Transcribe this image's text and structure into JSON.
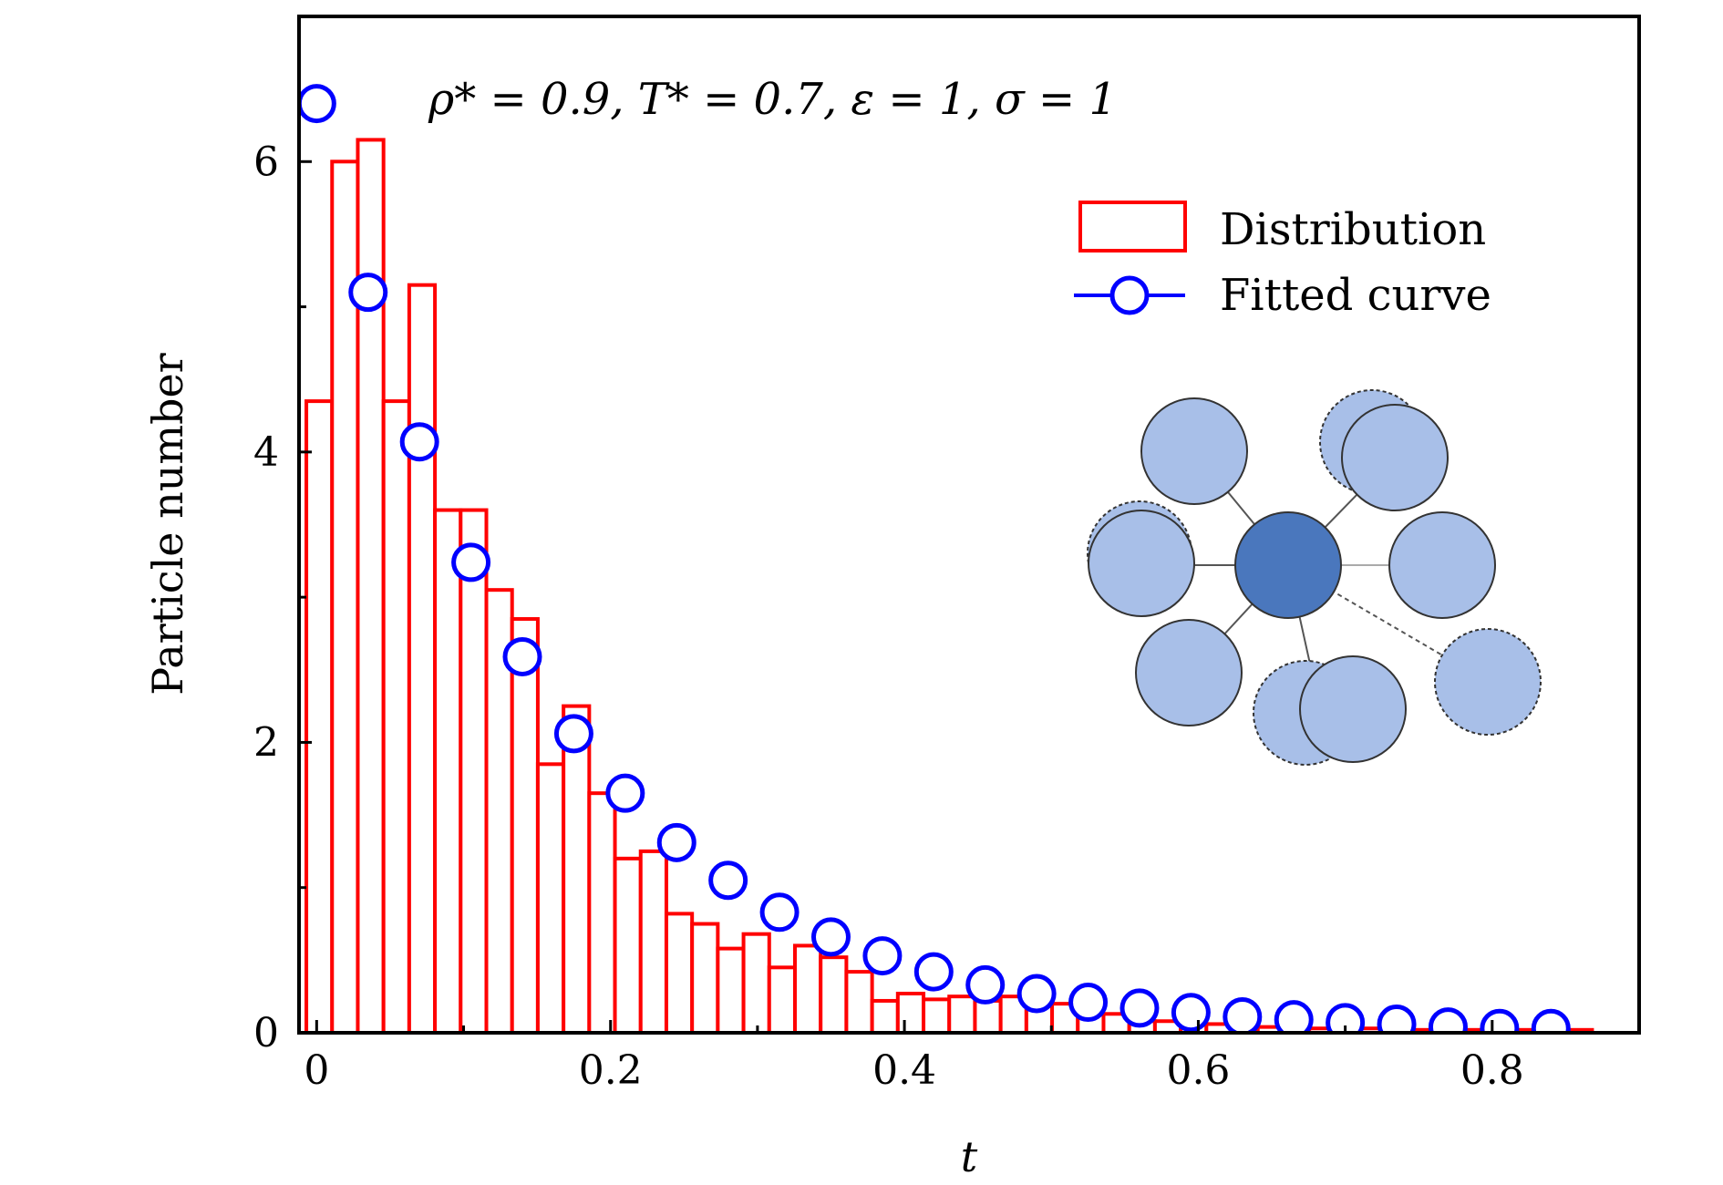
{
  "chart_data": {
    "type": "bar",
    "annotation": "ρ* = 0.9, T* = 0.7, ε = 1, σ = 1",
    "xlabel": "t",
    "ylabel": "Particle number",
    "xlim": [
      -0.012,
      0.9
    ],
    "ylim": [
      0,
      7.0
    ],
    "xticks": [
      0,
      0.2,
      0.4,
      0.6,
      0.8
    ],
    "xtick_labels": [
      "0",
      "0.2",
      "0.4",
      "0.6",
      "0.8"
    ],
    "yticks": [
      0,
      2,
      4,
      6
    ],
    "ytick_labels": [
      "0",
      "2",
      "4",
      "6"
    ],
    "legend_position": "top-right",
    "colors": {
      "distribution": "#ff0000",
      "fitted": "#0000ff",
      "circle_light": "#a8bfe8",
      "circle_dark": "#4a77bd"
    },
    "series": [
      {
        "name": "Distribution",
        "type": "bar",
        "bin_width": 0.0175,
        "bin_start": -0.007,
        "values": [
          4.35,
          6.0,
          6.15,
          4.35,
          5.15,
          3.6,
          3.6,
          3.05,
          2.85,
          1.85,
          2.25,
          1.65,
          1.2,
          1.25,
          0.82,
          0.75,
          0.58,
          0.68,
          0.45,
          0.6,
          0.52,
          0.42,
          0.22,
          0.27,
          0.23,
          0.25,
          0.22,
          0.25,
          0.2,
          0.2,
          0.13,
          0.13,
          0.08,
          0.08,
          0.08,
          0.06,
          0.06,
          0.04,
          0.04,
          0.03,
          0.03,
          0.03,
          0.02,
          0.02,
          0.02,
          0.02,
          0.02,
          0.02,
          0.02,
          0.02
        ]
      },
      {
        "name": "Fitted curve",
        "type": "scatter",
        "x": [
          0.0,
          0.035,
          0.07,
          0.105,
          0.14,
          0.175,
          0.21,
          0.245,
          0.28,
          0.315,
          0.35,
          0.385,
          0.42,
          0.455,
          0.49,
          0.525,
          0.56,
          0.595,
          0.63,
          0.665,
          0.7,
          0.735,
          0.77,
          0.805,
          0.84
        ],
        "y": [
          6.4,
          5.1,
          4.07,
          3.24,
          2.59,
          2.06,
          1.65,
          1.31,
          1.05,
          0.83,
          0.66,
          0.53,
          0.42,
          0.33,
          0.27,
          0.21,
          0.17,
          0.14,
          0.11,
          0.09,
          0.07,
          0.06,
          0.04,
          0.03,
          0.03
        ]
      }
    ]
  }
}
